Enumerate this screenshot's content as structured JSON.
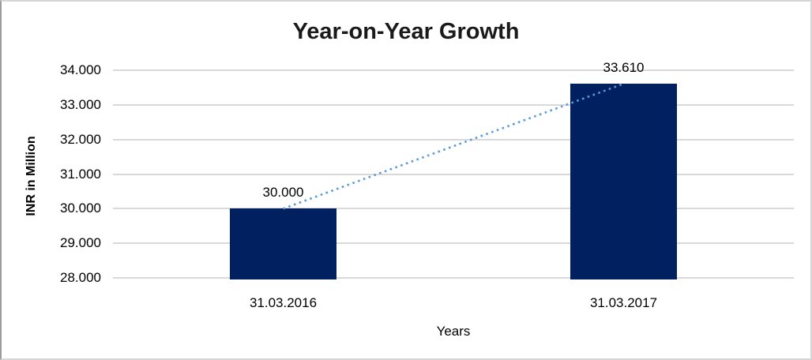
{
  "chart_data": {
    "type": "bar",
    "title": "Year-on-Year Growth",
    "xlabel": "Years",
    "ylabel": "INR in Million",
    "categories": [
      "31.03.2016",
      "31.03.2017"
    ],
    "values": [
      30000,
      33610
    ],
    "value_labels": [
      "30.000",
      "33.610"
    ],
    "y_tick_values": [
      28000,
      29000,
      30000,
      31000,
      32000,
      33000,
      34000
    ],
    "y_tick_labels": [
      "28.000",
      "29.000",
      "30.000",
      "31.000",
      "32.000",
      "33.000",
      "34.000"
    ],
    "ylim": [
      28000,
      34000
    ],
    "grid": true,
    "legend": "none",
    "trendline": {
      "type": "linear",
      "style": "dotted",
      "connects": "bar tops"
    },
    "colors": {
      "bar": "#002060",
      "trendline": "#5b9bd5",
      "gridline": "#d9d9d9",
      "text": "#000000",
      "title_text": "#1a1a1a",
      "border": "#d5d5d5"
    }
  }
}
